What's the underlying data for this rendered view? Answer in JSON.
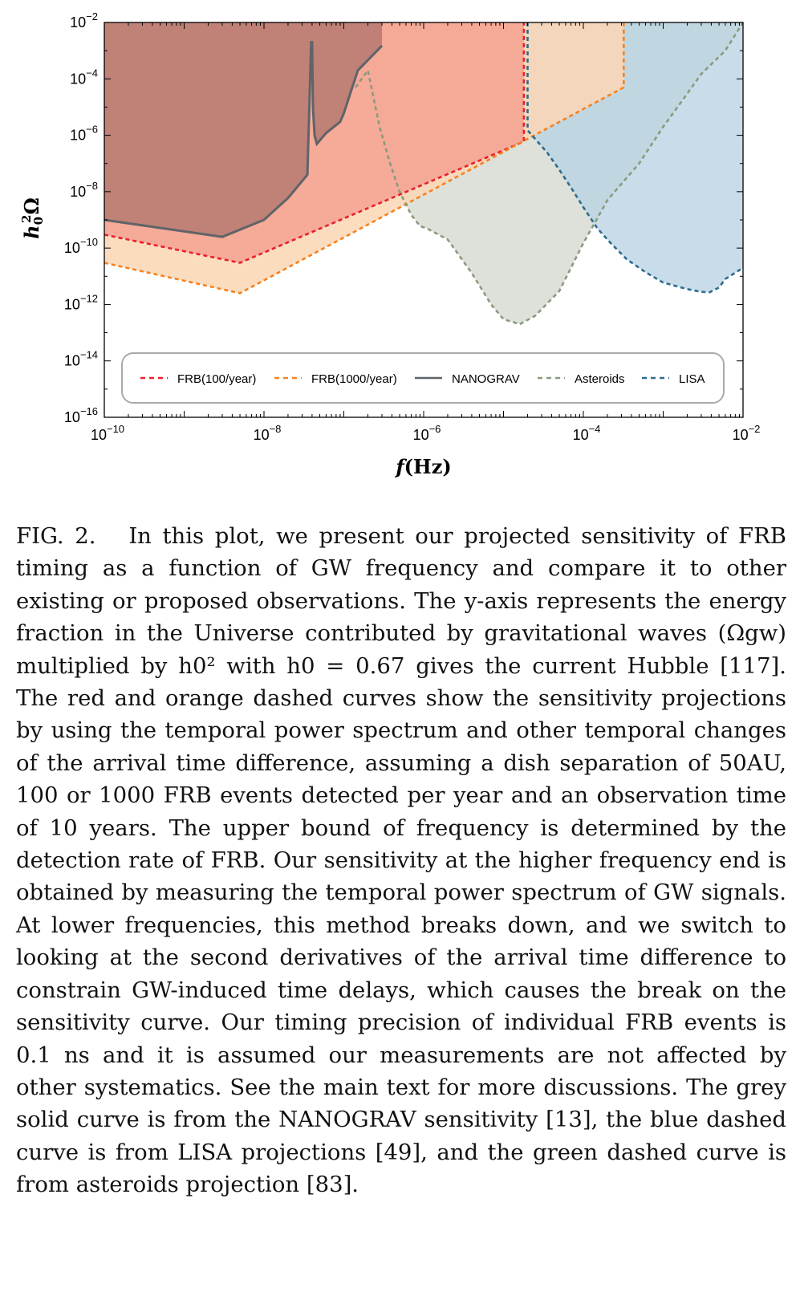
{
  "chart_data": {
    "type": "area",
    "xlabel": "f (Hz)",
    "ylabel": "h0^2 Ω",
    "x_scale": "log",
    "y_scale": "log",
    "xlim": [
      1e-10,
      0.01
    ],
    "ylim": [
      1e-16,
      0.01
    ],
    "x_ticks": [
      {
        "value": 1e-10,
        "base": "10",
        "exp": "−10"
      },
      {
        "value": 1e-08,
        "base": "10",
        "exp": "−8"
      },
      {
        "value": 1e-06,
        "base": "10",
        "exp": "−6"
      },
      {
        "value": 0.0001,
        "base": "10",
        "exp": "−4"
      },
      {
        "value": 0.01,
        "base": "10",
        "exp": "−2"
      }
    ],
    "y_ticks": [
      {
        "value": 0.01,
        "base": "10",
        "exp": "−2"
      },
      {
        "value": 0.0001,
        "base": "10",
        "exp": "−4"
      },
      {
        "value": 1e-06,
        "base": "10",
        "exp": "−6"
      },
      {
        "value": 1e-08,
        "base": "10",
        "exp": "−8"
      },
      {
        "value": 1e-10,
        "base": "10",
        "exp": "−10"
      },
      {
        "value": 1e-12,
        "base": "10",
        "exp": "−12"
      },
      {
        "value": 1e-14,
        "base": "10",
        "exp": "−14"
      },
      {
        "value": 1e-16,
        "base": "10",
        "exp": "−16"
      }
    ],
    "grid": false,
    "legend_position": "bottom-inside",
    "series": [
      {
        "name": "FRB(100/year)",
        "color": "#e8202a",
        "fill": "#f4a191",
        "style": "dashed",
        "x": [
          1e-10,
          5e-09,
          1.8e-05,
          1.8e-05
        ],
        "y": [
          3e-10,
          3e-11,
          6e-07,
          0.01
        ]
      },
      {
        "name": "FRB(1000/year)",
        "color": "#f58220",
        "fill": "#fbd6b4",
        "style": "dashed",
        "x": [
          1e-10,
          5e-09,
          0.00032,
          0.00032
        ],
        "y": [
          3e-11,
          2.5e-12,
          5e-05,
          0.01
        ]
      },
      {
        "name": "NANOGRAV",
        "color": "#5f6468",
        "style": "solid",
        "x": [
          1e-10,
          3e-09,
          1e-08,
          2e-08,
          3.5e-08,
          3.7e-08,
          3.9e-08,
          4e-08,
          4.1e-08,
          4.3e-08,
          4.6e-08,
          6e-08,
          9e-08,
          1e-07,
          1.2e-07,
          1.5e-07,
          3e-07
        ],
        "y": [
          1e-09,
          2.5e-10,
          1e-09,
          6e-09,
          4e-08,
          1e-05,
          0.002,
          0.002,
          1e-05,
          1e-06,
          5e-07,
          1.2e-06,
          3e-06,
          6e-06,
          3e-05,
          0.0002,
          0.0015
        ]
      },
      {
        "name": "Asteroids",
        "color": "#8b9a7e",
        "fill": "#dcdfd8",
        "style": "dashed",
        "x": [
          1.4e-07,
          2e-07,
          2.8e-07,
          3.8e-07,
          5e-07,
          7e-07,
          9e-07,
          1.1e-06,
          2e-06,
          4e-06,
          7e-06,
          1e-05,
          1.6e-05,
          2.5e-05,
          5e-05,
          0.0001,
          0.0002,
          0.0005,
          0.001,
          0.002,
          0.003,
          0.006,
          0.01
        ],
        "y": [
          5e-05,
          0.0002,
          2e-06,
          1e-07,
          1e-08,
          1.5e-09,
          6e-10,
          5e-10,
          2e-10,
          1.3e-11,
          1e-12,
          3e-13,
          2e-13,
          4e-13,
          3e-12,
          1.5e-10,
          5e-09,
          1e-07,
          2e-06,
          3e-05,
          0.00015,
          0.001,
          0.01
        ]
      },
      {
        "name": "LISA",
        "color": "#2e6b8f",
        "fill": "#b6d1e1",
        "style": "dashed",
        "x": [
          2e-05,
          2e-05,
          3.5e-05,
          5e-05,
          7e-05,
          0.0001,
          0.00015,
          0.00022,
          0.00035,
          0.0006,
          0.001,
          0.002,
          0.003,
          0.0038,
          0.005,
          0.006,
          0.01
        ],
        "y": [
          0.01,
          1.5e-06,
          2.5e-07,
          6e-08,
          1.4e-08,
          2.8e-09,
          5e-10,
          1.5e-10,
          4e-11,
          1.4e-11,
          6e-12,
          3.5e-12,
          2.8e-12,
          2.7e-12,
          4e-12,
          8e-12,
          2e-11
        ]
      }
    ],
    "shaded_regions": [
      {
        "label": "NANOGRAV-excluded",
        "fill": "#a96f6a"
      },
      {
        "label": "FRB(100/year)-region",
        "fill": "#f4a191"
      },
      {
        "label": "FRB(1000/year)-region",
        "fill": "#fbd6b4"
      },
      {
        "label": "Asteroids-region",
        "fill": "#dcdfd8"
      },
      {
        "label": "LISA-region",
        "fill": "#b6d1e1"
      }
    ]
  },
  "caption": {
    "label": "FIG. 2.",
    "text": "In this plot, we present our projected sensitivity of FRB timing as a function of GW frequency and compare it to other existing or proposed observations. The y-axis represents the energy fraction in the Universe contributed by gravitational waves (Ωgw) multiplied by h0² with h0 = 0.67 gives the current Hubble [117]. The red and orange dashed curves show the sensitivity projections by using the temporal power spectrum and other temporal changes of the arrival time difference, assuming a dish separation of 50AU, 100 or 1000 FRB events detected per year and an observation time of 10 years. The upper bound of frequency is determined by the detection rate of FRB. Our sensitivity at the higher frequency end is obtained by measuring the temporal power spectrum of GW signals. At lower frequencies, this method breaks down, and we switch to looking at the second derivatives of the arrival time difference to constrain GW-induced time delays, which causes the break on the sensitivity curve. Our timing precision of individual FRB events is 0.1 ns and it is assumed our measurements are not affected by other systematics. See the main text for more discussions. The grey solid curve is from the NANOGRAV sensitivity [13], the blue dashed curve is from LISA projections [49], and the green dashed curve is from asteroids projection [83]."
  }
}
